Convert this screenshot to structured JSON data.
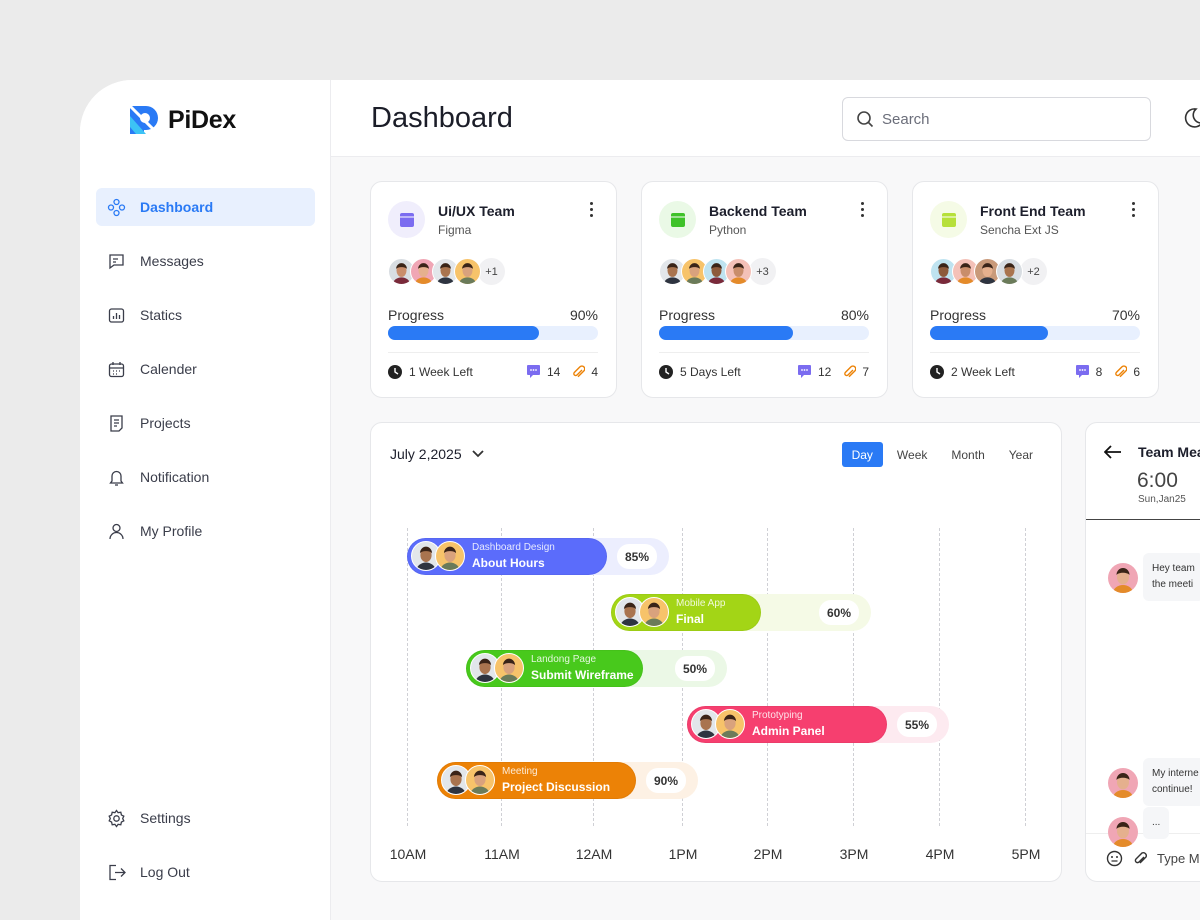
{
  "brand": {
    "name": "PiDex",
    "accent": "#2a7af5"
  },
  "sidebar": {
    "items": [
      {
        "label": "Dashboard",
        "icon": "dashboard-icon",
        "active": true
      },
      {
        "label": "Messages",
        "icon": "message-icon"
      },
      {
        "label": "Statics",
        "icon": "chart-icon"
      },
      {
        "label": "Calender",
        "icon": "calendar-icon"
      },
      {
        "label": "Projects",
        "icon": "document-icon"
      },
      {
        "label": "Notification",
        "icon": "bell-icon"
      },
      {
        "label": "My Profile",
        "icon": "user-icon"
      }
    ],
    "bottom": [
      {
        "label": "Settings",
        "icon": "gear-icon"
      },
      {
        "label": "Log Out",
        "icon": "logout-icon"
      }
    ]
  },
  "header": {
    "title": "Dashboard",
    "search_placeholder": "Search"
  },
  "teams": [
    {
      "name": "Ui/UX Team",
      "tool": "Figma",
      "extra": "+1",
      "progress_label": "Progress",
      "progress": 90,
      "progress_text": "90%",
      "time_left": "1 Week Left",
      "comments": "14",
      "attachments": "4",
      "icon_color": "#7b6cf0",
      "icon_bg": "#f0eefc"
    },
    {
      "name": "Backend Team",
      "tool": "Python",
      "extra": "+3",
      "progress_label": "Progress",
      "progress": 80,
      "progress_text": "80%",
      "time_left": "5 Days Left",
      "comments": "12",
      "attachments": "7",
      "icon_color": "#3fc229",
      "icon_bg": "#eaf9e6"
    },
    {
      "name": "Front End Team",
      "tool": "Sencha Ext JS",
      "extra": "+2",
      "progress_label": "Progress",
      "progress": 70,
      "progress_text": "70%",
      "time_left": "2 Week Left",
      "comments": "8",
      "attachments": "6",
      "icon_color": "#b6e03a",
      "icon_bg": "#f5fbe6"
    }
  ],
  "schedule": {
    "date": "July 2,2025",
    "views": [
      "Day",
      "Week",
      "Month",
      "Year"
    ],
    "active_view": "Day",
    "times": [
      "10AM",
      "11AM",
      "12AM",
      "1PM",
      "2PM",
      "3PM",
      "4PM",
      "5PM"
    ],
    "events": [
      {
        "category": "Dashboard Design",
        "title": "About Hours",
        "percent": "85%",
        "color": "#5b6cfb",
        "light": "#eceefe"
      },
      {
        "category": "Mobile App",
        "title": "Final",
        "percent": "60%",
        "color": "#a3d516",
        "light": "#f5fae6"
      },
      {
        "category": "Landong Page",
        "title": "Submit Wireframe",
        "percent": "50%",
        "color": "#48c91c",
        "light": "#ebf8e6"
      },
      {
        "category": "Prototyping",
        "title": "Admin Panel",
        "percent": "55%",
        "color": "#f63f6f",
        "light": "#fdeaf0"
      },
      {
        "category": "Meeting",
        "title": "Project Discussion",
        "percent": "90%",
        "color": "#ec8206",
        "light": "#fdf1e4"
      }
    ]
  },
  "chat": {
    "title": "Team Mea",
    "time": "6:00",
    "date": "Sun,Jan25",
    "messages": [
      {
        "lines": [
          "Hey team",
          "the meeti"
        ]
      },
      {
        "lines": [
          "My interne",
          "continue!"
        ]
      },
      {
        "lines": [
          "..."
        ]
      }
    ],
    "input_placeholder": "Type M"
  }
}
